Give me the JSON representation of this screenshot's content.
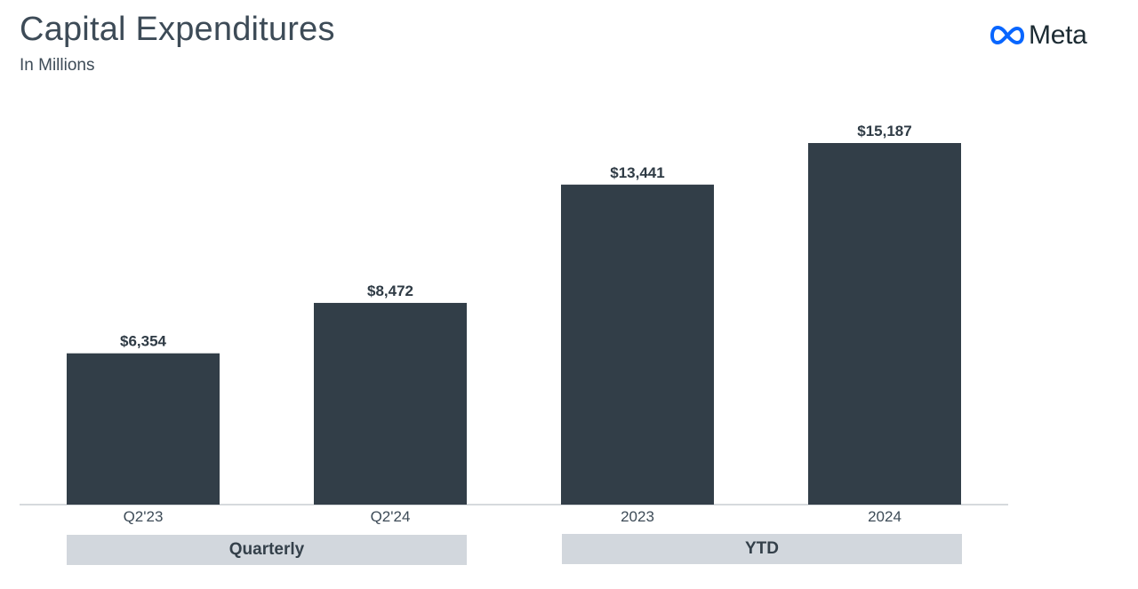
{
  "header": {
    "title": "Capital Expenditures",
    "subtitle": "In Millions"
  },
  "logo": {
    "text": "Meta",
    "icon": "meta-infinity-icon",
    "color": "#0866ff"
  },
  "colors": {
    "bar": "#323e48",
    "group_box": "#d2d7dd",
    "axis": "#c8cdd2"
  },
  "chart_data": {
    "type": "bar",
    "title": "Capital Expenditures",
    "subtitle": "In Millions",
    "xlabel": "",
    "ylabel": "",
    "categories": [
      "Q2'23",
      "Q2'24",
      "2023",
      "2024"
    ],
    "values": [
      6354,
      8472,
      13441,
      15187
    ],
    "data_labels": [
      "$6,354",
      "$8,472",
      "$13,441",
      "$15,187"
    ],
    "ylim": [
      0,
      15187
    ],
    "grid": false,
    "groups": [
      {
        "label": "Quarterly",
        "categories": [
          "Q2'23",
          "Q2'24"
        ]
      },
      {
        "label": "YTD",
        "categories": [
          "2023",
          "2024"
        ]
      }
    ]
  }
}
